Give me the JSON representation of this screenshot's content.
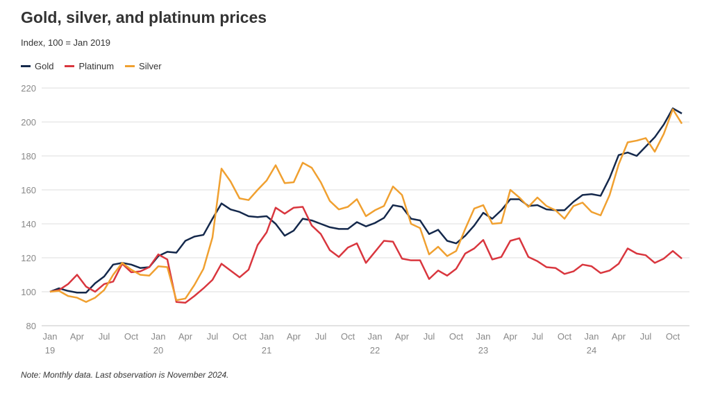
{
  "chart_data": {
    "type": "line",
    "title": "Gold, silver, and platinum prices",
    "subtitle": "Index, 100 = Jan 2019",
    "note": "Note: Monthly data. Last observation is November 2024.",
    "x_start": "2019-01",
    "x_end": "2024-11",
    "frequency": "monthly",
    "ylim": [
      80,
      220
    ],
    "yticks": [
      80,
      100,
      120,
      140,
      160,
      180,
      200,
      220
    ],
    "xticks": [
      {
        "month": "2019-01",
        "label": "Jan",
        "sub": "19"
      },
      {
        "month": "2019-04",
        "label": "Apr",
        "sub": ""
      },
      {
        "month": "2019-07",
        "label": "Jul",
        "sub": ""
      },
      {
        "month": "2019-10",
        "label": "Oct",
        "sub": ""
      },
      {
        "month": "2020-01",
        "label": "Jan",
        "sub": "20"
      },
      {
        "month": "2020-04",
        "label": "Apr",
        "sub": ""
      },
      {
        "month": "2020-07",
        "label": "Jul",
        "sub": ""
      },
      {
        "month": "2020-10",
        "label": "Oct",
        "sub": ""
      },
      {
        "month": "2021-01",
        "label": "Jan",
        "sub": "21"
      },
      {
        "month": "2021-04",
        "label": "Apr",
        "sub": ""
      },
      {
        "month": "2021-07",
        "label": "Jul",
        "sub": ""
      },
      {
        "month": "2021-10",
        "label": "Oct",
        "sub": ""
      },
      {
        "month": "2022-01",
        "label": "Jan",
        "sub": "22"
      },
      {
        "month": "2022-04",
        "label": "Apr",
        "sub": ""
      },
      {
        "month": "2022-07",
        "label": "Jul",
        "sub": ""
      },
      {
        "month": "2022-10",
        "label": "Oct",
        "sub": ""
      },
      {
        "month": "2023-01",
        "label": "Jan",
        "sub": "23"
      },
      {
        "month": "2023-04",
        "label": "Apr",
        "sub": ""
      },
      {
        "month": "2023-07",
        "label": "Jul",
        "sub": ""
      },
      {
        "month": "2023-10",
        "label": "Oct",
        "sub": ""
      },
      {
        "month": "2024-01",
        "label": "Jan",
        "sub": "24"
      },
      {
        "month": "2024-04",
        "label": "Apr",
        "sub": ""
      },
      {
        "month": "2024-07",
        "label": "Jul",
        "sub": ""
      },
      {
        "month": "2024-10",
        "label": "Oct",
        "sub": ""
      }
    ],
    "grid": "horizontal",
    "legend_placement": "top-left",
    "series": [
      {
        "name": "Gold",
        "color": "#14284b",
        "values": [
          100,
          102,
          100.5,
          99.5,
          99.5,
          105,
          109,
          116,
          117,
          116,
          114,
          114.5,
          121,
          123.5,
          123,
          130,
          132.5,
          133.5,
          143,
          152,
          148.5,
          147,
          144.5,
          144,
          144.5,
          140,
          133,
          136,
          143,
          142,
          140,
          138,
          137,
          137,
          141,
          138.5,
          140.5,
          143.5,
          151,
          150,
          143,
          142,
          134,
          136.5,
          130,
          128.5,
          133,
          139,
          146.5,
          143,
          148,
          154.5,
          154.5,
          150.5,
          151,
          148.5,
          148,
          148,
          153,
          157,
          157.5,
          156.5,
          167,
          180.5,
          182,
          180,
          185.5,
          191,
          198.5,
          208,
          205
        ]
      },
      {
        "name": "Platinum",
        "color": "#d9363e",
        "values": [
          100,
          101,
          104.5,
          110,
          103,
          100,
          104.5,
          106,
          116.5,
          111.5,
          112,
          114.5,
          122,
          119,
          94,
          93.5,
          97.5,
          102,
          107,
          116.5,
          112.5,
          108.5,
          113,
          127.5,
          135,
          149.5,
          146,
          149.5,
          150,
          139,
          134,
          124.5,
          120.5,
          126,
          128.5,
          117,
          123.5,
          130,
          129.5,
          119.5,
          118.5,
          118.5,
          107.5,
          112.5,
          109.5,
          113.5,
          122.5,
          125.5,
          130.5,
          119,
          120.5,
          130,
          131.5,
          120.5,
          118,
          114.5,
          114,
          110.5,
          112,
          116,
          115,
          111,
          112.5,
          116.5,
          125.5,
          122.5,
          121.5,
          117,
          119.5,
          124,
          119.5
        ]
      },
      {
        "name": "Silver",
        "color": "#f0a030",
        "values": [
          100,
          100.5,
          97.5,
          96.5,
          94,
          96.5,
          101,
          110,
          117,
          113,
          110,
          109.5,
          115,
          114.5,
          95,
          96,
          104,
          113.5,
          132,
          172.5,
          165,
          155,
          154,
          160,
          165.5,
          174.5,
          164,
          164.5,
          176,
          173,
          164.5,
          153.5,
          148.5,
          150,
          154.5,
          144.5,
          148,
          150.5,
          162,
          157,
          140,
          137.5,
          122,
          126.5,
          121,
          124,
          137,
          149,
          151,
          140,
          140.5,
          160,
          155.5,
          150,
          155.5,
          150.5,
          148,
          143,
          150.5,
          152.5,
          147,
          145,
          157,
          175,
          188,
          189,
          190.5,
          182.5,
          193,
          207.5,
          199
        ]
      }
    ]
  }
}
